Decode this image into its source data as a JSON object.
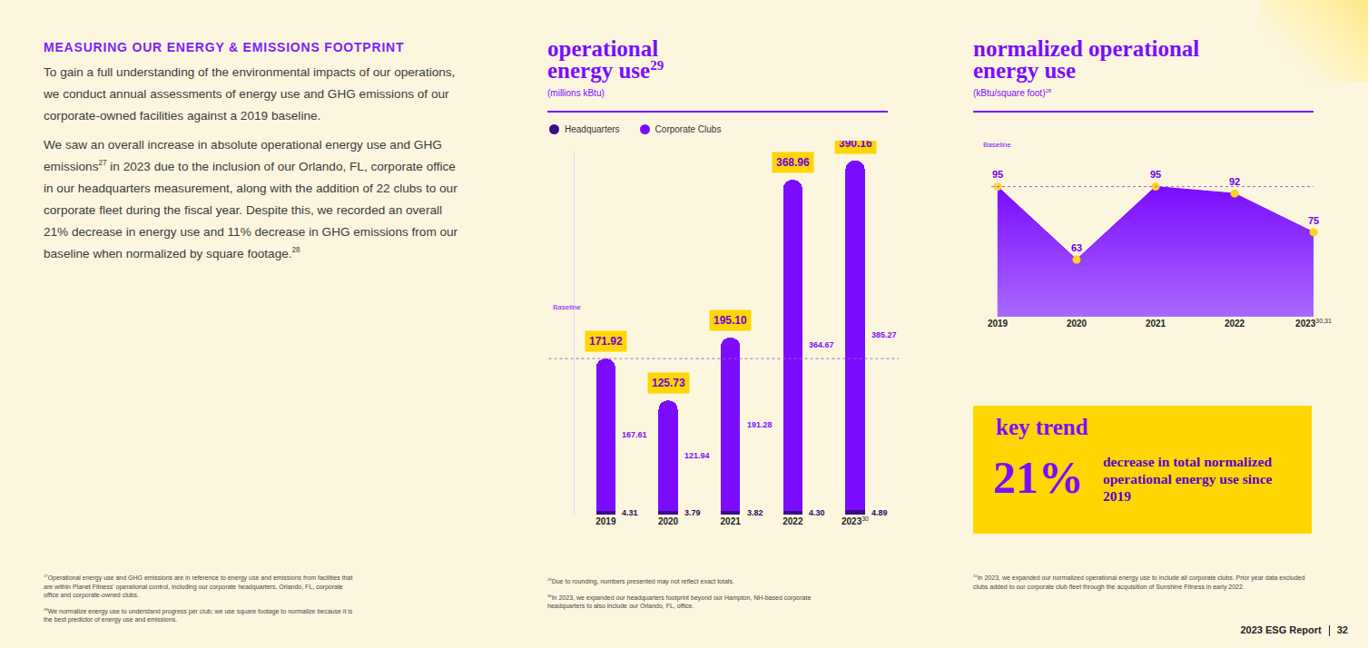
{
  "header": {
    "title": "MEASURING OUR ENERGY & EMISSIONS FOOTPRINT",
    "paragraphs": [
      [
        {
          "text": "To gain a full understanding of the environmental impacts of our operations, we conduct annual assessments of energy use and GHG emissions of our corporate-owned facilities against a 2019 baseline."
        }
      ],
      [
        {
          "text": "We saw an overall increase in absolute operational energy use and GHG emissions"
        },
        {
          "sup": "27"
        },
        {
          "text": " in 2023 due to the inclusion of our Orlando, FL, corporate office in our headquarters measurement, along with the addition of 22 clubs to our corporate fleet during the fiscal year. Despite this, we recorded an overall 21% decrease in energy use and 11% decrease in GHG emissions from our baseline when normalized by square footage."
        },
        {
          "sup": "28"
        }
      ]
    ]
  },
  "chart_data": [
    {
      "type": "bar",
      "stacked": true,
      "title": "operational energy use",
      "title_sup": "29",
      "subtitle": "(millions kBtu)",
      "categories": [
        "2019",
        "2020",
        "2021",
        "2022",
        "2023"
      ],
      "category_sups": [
        null,
        null,
        null,
        null,
        "30"
      ],
      "series": [
        {
          "name": "Headquarters",
          "color": "#3d0a8c",
          "values": [
            4.31,
            3.79,
            3.82,
            4.3,
            4.89
          ],
          "value_labels": [
            "4.31",
            "3.79",
            "3.82",
            "4.30",
            "4.89"
          ]
        },
        {
          "name": "Corporate Clubs",
          "color": "#7b0cff",
          "values": [
            167.61,
            121.94,
            191.28,
            364.67,
            385.27
          ]
        }
      ],
      "totals": [
        171.92,
        125.73,
        195.1,
        368.96,
        390.16
      ],
      "total_labels": [
        "171.92",
        "125.73",
        "195.10",
        "368.96",
        "390.16"
      ],
      "baseline": {
        "label": "Baseline",
        "value": 171.92
      },
      "ylim": [
        0,
        400
      ],
      "yticks": [],
      "tick_labels": "x",
      "data_labels": true,
      "legend": "top left"
    },
    {
      "type": "area",
      "title": "normalized operational energy use",
      "subtitle": "(kBtu/square foot)",
      "subtitle_sup": "28",
      "categories": [
        "2019",
        "2020",
        "2021",
        "2022",
        "2023"
      ],
      "category_sups": [
        null,
        null,
        null,
        null,
        "30,31"
      ],
      "values": [
        95,
        63,
        95,
        92,
        75
      ],
      "color": "#7b0cff",
      "marker": "circle",
      "baseline": {
        "label": "Baseline",
        "value": 95
      },
      "ylim": [
        38,
        100
      ],
      "yticks": [],
      "tick_labels": "x",
      "data_labels": true
    }
  ],
  "key_trend": {
    "title": "key trend",
    "headline": "21%",
    "text": "decrease in total normalized operational energy use since 2019"
  },
  "footnotes": {
    "left": [
      {
        "id": "27",
        "text": "Operational energy use and GHG emissions are in reference to energy use and emissions from facilities that are within Planet Fitness' operational control, including our corporate headquarters, Orlando, FL, corporate office and corporate-owned clubs."
      },
      {
        "id": "28",
        "text": "We normalize energy use to understand progress per club; we use square footage to normalize because it is the best predictor of energy use and emissions."
      }
    ],
    "middle": [
      {
        "id": "29",
        "text": "Due to rounding, numbers presented may not reflect exact totals."
      },
      {
        "id": "30",
        "text": "In 2023, we expanded our headquarters footprint beyond our Hampton, NH-based corporate headquarters to also include our Orlando, FL, office."
      }
    ],
    "right": [
      {
        "id": "31",
        "text": "In 2023, we expanded our normalized operational energy use to include all corporate clubs. Prior year data excluded clubs added to our corporate club fleet through the acquisition of Sunshine Fitness in early 2022."
      }
    ]
  },
  "footer": {
    "report": "2023 ESG Report",
    "page": "32"
  }
}
